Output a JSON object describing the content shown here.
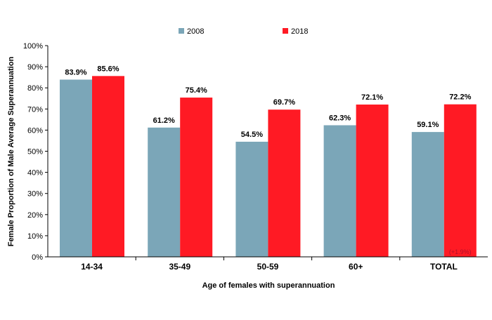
{
  "chart_data": {
    "type": "bar",
    "categories": [
      "14-34",
      "35-49",
      "50-59",
      "60+",
      "TOTAL"
    ],
    "series": [
      {
        "name": "2008",
        "values": [
          83.9,
          61.2,
          54.5,
          62.3,
          59.1
        ],
        "labels": [
          "83.9%",
          "61.2%",
          "54.5%",
          "62.3%",
          "59.1%"
        ],
        "color": "#7ba6b8"
      },
      {
        "name": "2018",
        "values": [
          85.6,
          75.4,
          69.7,
          72.1,
          72.2
        ],
        "labels": [
          "85.6%",
          "75.4%",
          "69.7%",
          "72.1%",
          "72.2%"
        ],
        "color": "#ff1a24"
      }
    ],
    "xlabel": "Age of females with superannuation",
    "ylabel": "Female Proportion of Male Average Superannuation",
    "ylim": [
      0,
      100
    ],
    "yticks": [
      "0%",
      "10%",
      "20%",
      "30%",
      "40%",
      "50%",
      "60%",
      "70%",
      "80%",
      "90%",
      "100%"
    ],
    "grid": false,
    "legend_position": "top",
    "annotation": {
      "text": "(+1.9%)",
      "category": "TOTAL",
      "series": "2018",
      "color": "#b0102a"
    }
  }
}
